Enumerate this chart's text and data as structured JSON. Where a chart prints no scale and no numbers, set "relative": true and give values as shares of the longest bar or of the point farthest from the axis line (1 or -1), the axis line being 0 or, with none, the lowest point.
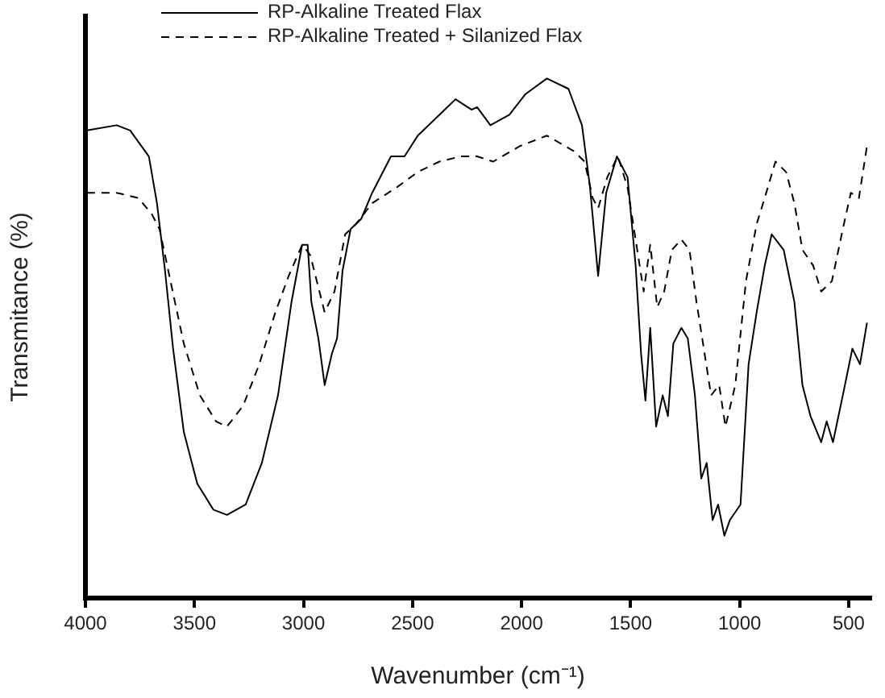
{
  "chart_data": {
    "type": "line",
    "xlabel": "Wavenumber (cm⁻¹)",
    "ylabel": "Transmitance (%)",
    "relative": true,
    "xlim": [
      4000,
      400
    ],
    "xticks": [
      4000,
      3500,
      3000,
      2500,
      2000,
      1500,
      1000,
      500
    ],
    "legend": "top",
    "grid": false,
    "marker": "none",
    "series": [
      {
        "name": "RP-Alkaline Treated Flax",
        "color": "#000000",
        "line_style": "solid",
        "x": [
          3993,
          3857,
          3795,
          3709,
          3672,
          3635,
          3598,
          3549,
          3487,
          3413,
          3351,
          3265,
          3191,
          3117,
          3055,
          3006,
          2981,
          2964,
          2932,
          2903,
          2870,
          2846,
          2821,
          2784,
          2735,
          2685,
          2599,
          2537,
          2476,
          2377,
          2303,
          2229,
          2204,
          2143,
          2056,
          1982,
          1884,
          1785,
          1723,
          1686,
          1649,
          1612,
          1563,
          1514,
          1477,
          1452,
          1432,
          1410,
          1383,
          1353,
          1329,
          1304,
          1267,
          1238,
          1205,
          1176,
          1151,
          1124,
          1099,
          1070,
          1045,
          996,
          959,
          922,
          885,
          853,
          798,
          749,
          712,
          675,
          626,
          601,
          572,
          527,
          483,
          448,
          416
        ],
        "values": [
          0.9,
          0.91,
          0.9,
          0.85,
          0.76,
          0.63,
          0.48,
          0.32,
          0.22,
          0.17,
          0.16,
          0.18,
          0.26,
          0.39,
          0.57,
          0.68,
          0.68,
          0.57,
          0.5,
          0.41,
          0.47,
          0.5,
          0.63,
          0.71,
          0.73,
          0.78,
          0.85,
          0.85,
          0.89,
          0.93,
          0.96,
          0.94,
          0.945,
          0.91,
          0.93,
          0.97,
          1.0,
          0.98,
          0.91,
          0.79,
          0.62,
          0.78,
          0.85,
          0.81,
          0.64,
          0.47,
          0.38,
          0.52,
          0.33,
          0.39,
          0.35,
          0.49,
          0.52,
          0.5,
          0.39,
          0.23,
          0.26,
          0.15,
          0.18,
          0.12,
          0.15,
          0.18,
          0.45,
          0.55,
          0.64,
          0.7,
          0.67,
          0.57,
          0.41,
          0.35,
          0.3,
          0.34,
          0.3,
          0.39,
          0.48,
          0.45,
          0.53
        ]
      },
      {
        "name": "RP-Alkaline Treated + Silanized Flax",
        "color": "#000000",
        "line_style": "dashed",
        "x": [
          3993,
          3857,
          3758,
          3697,
          3660,
          3610,
          3549,
          3475,
          3401,
          3351,
          3277,
          3203,
          3129,
          3068,
          3006,
          2969,
          2903,
          2858,
          2809,
          2759,
          2685,
          2574,
          2476,
          2377,
          2278,
          2204,
          2130,
          2007,
          1884,
          1760,
          1711,
          1674,
          1649,
          1607,
          1558,
          1514,
          1477,
          1440,
          1410,
          1378,
          1346,
          1311,
          1267,
          1230,
          1198,
          1168,
          1131,
          1094,
          1065,
          1020,
          971,
          922,
          885,
          836,
          787,
          749,
          712,
          663,
          626,
          577,
          527,
          490,
          453,
          416
        ],
        "values": [
          0.78,
          0.78,
          0.77,
          0.74,
          0.71,
          0.61,
          0.49,
          0.39,
          0.34,
          0.33,
          0.37,
          0.45,
          0.55,
          0.62,
          0.68,
          0.66,
          0.55,
          0.59,
          0.7,
          0.72,
          0.76,
          0.79,
          0.82,
          0.84,
          0.85,
          0.85,
          0.84,
          0.87,
          0.89,
          0.86,
          0.84,
          0.77,
          0.75,
          0.81,
          0.85,
          0.79,
          0.69,
          0.59,
          0.68,
          0.56,
          0.59,
          0.67,
          0.69,
          0.67,
          0.57,
          0.49,
          0.39,
          0.41,
          0.33,
          0.41,
          0.61,
          0.72,
          0.77,
          0.84,
          0.82,
          0.76,
          0.67,
          0.64,
          0.59,
          0.61,
          0.71,
          0.78,
          0.77,
          0.87
        ]
      }
    ]
  }
}
